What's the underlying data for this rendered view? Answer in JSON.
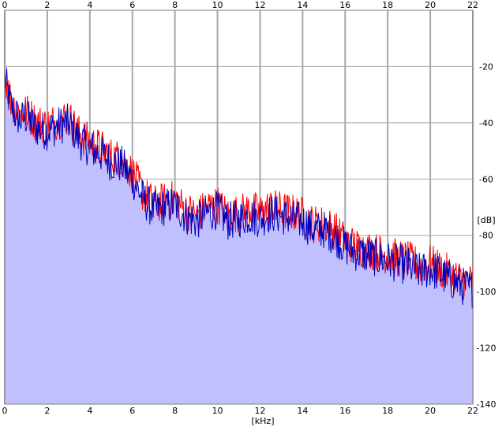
{
  "chart_data": {
    "type": "line",
    "title": "",
    "xlabel": "[kHz]",
    "ylabel": "[dB]",
    "xlim": [
      0,
      22
    ],
    "ylim": [
      -140,
      0
    ],
    "grid": true,
    "x_ticks": [
      0,
      2,
      4,
      6,
      8,
      10,
      12,
      14,
      16,
      18,
      20,
      22
    ],
    "y_ticks": [
      -20,
      -40,
      -60,
      -80,
      -100,
      -120,
      -140
    ],
    "colors": {
      "series_red": "#ff0000",
      "series_blue": "#0000c0",
      "area_fill": "#c0c0ff",
      "grid": "#a8a8a8"
    },
    "series": [
      {
        "color": "#ff0000",
        "x": [
          0,
          0.25,
          0.5,
          0.75,
          1,
          1.5,
          2,
          2.5,
          3,
          3.5,
          4,
          4.5,
          5,
          5.5,
          6,
          6.5,
          7,
          7.5,
          8,
          8.5,
          9,
          9.5,
          10,
          10.5,
          11,
          11.5,
          12,
          12.5,
          13,
          13.5,
          14,
          14.5,
          15,
          15.5,
          16,
          16.5,
          17,
          17.5,
          18,
          18.5,
          19,
          19.5,
          20,
          20.5,
          21,
          21.5,
          22
        ],
        "y": [
          -23,
          -31,
          -35,
          -37,
          -36,
          -40,
          -41,
          -39,
          -38,
          -44,
          -47,
          -49,
          -52,
          -53,
          -58,
          -65,
          -69,
          -68,
          -67,
          -71,
          -73,
          -70,
          -69,
          -73,
          -72,
          -71,
          -72,
          -70,
          -71,
          -72,
          -73,
          -76,
          -76,
          -78,
          -82,
          -84,
          -85,
          -86,
          -87,
          -88,
          -89,
          -91,
          -90,
          -92,
          -94,
          -96,
          -97
        ]
      },
      {
        "color": "#0000c0",
        "x": [
          0,
          0.25,
          0.5,
          0.75,
          1,
          1.5,
          2,
          2.5,
          3,
          3.5,
          4,
          4.5,
          5,
          5.5,
          6,
          6.5,
          7,
          7.5,
          8,
          8.5,
          9,
          9.5,
          10,
          10.5,
          11,
          11.5,
          12,
          12.5,
          13,
          13.5,
          14,
          14.5,
          15,
          15.5,
          16,
          16.5,
          17,
          17.5,
          18,
          18.5,
          19,
          19.5,
          20,
          20.5,
          21,
          21.5,
          22
        ],
        "y": [
          -24,
          -33,
          -37,
          -39,
          -38,
          -42,
          -43,
          -41,
          -40,
          -46,
          -49,
          -51,
          -54,
          -55,
          -60,
          -67,
          -71,
          -70,
          -69,
          -73,
          -75,
          -72,
          -71,
          -75,
          -74,
          -73,
          -74,
          -72,
          -73,
          -74,
          -75,
          -78,
          -78,
          -80,
          -84,
          -86,
          -87,
          -88,
          -89,
          -90,
          -91,
          -93,
          -92,
          -94,
          -96,
          -98,
          -99
        ]
      }
    ]
  }
}
